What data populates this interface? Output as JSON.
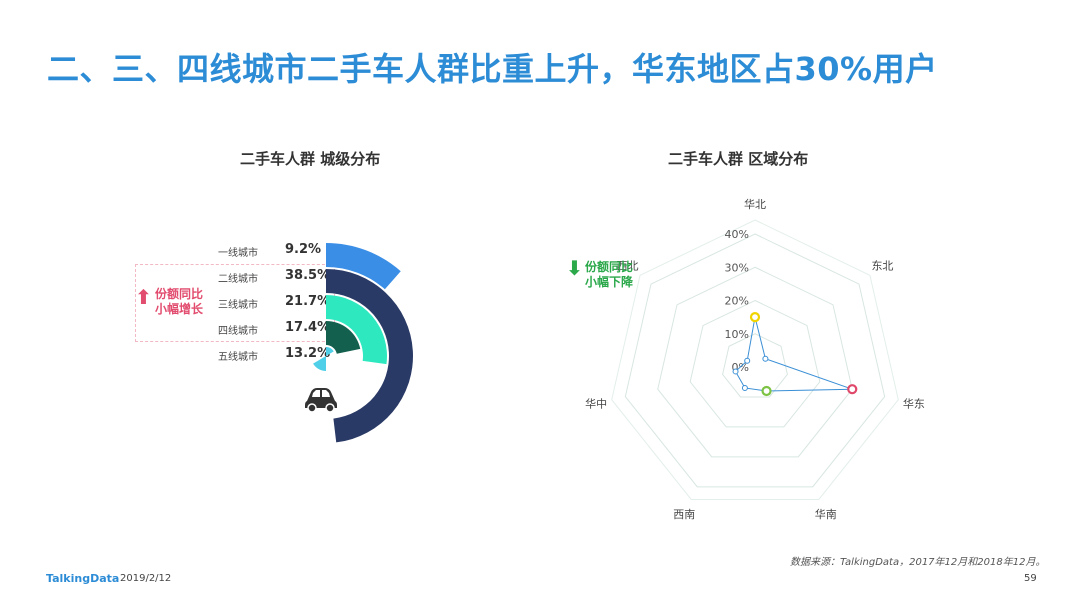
{
  "title": "二、三、四线城市二手车人群比重上升，华东地区占30%用户",
  "left_chart_title": "二手车人群  城级分布",
  "right_chart_title": "二手车人群  区域分布",
  "badge_up": {
    "line1": "份额同比",
    "line2": "小幅增长",
    "color": "#e24c6e"
  },
  "badge_down": {
    "line1": "份额同比",
    "line2": "小幅下降",
    "color": "#2aa84a"
  },
  "source": "数据来源：TalkingData，2017年12月和2018年12月。",
  "footer": {
    "brand": "TalkingData",
    "date": "2019/2/12",
    "page": "59"
  },
  "icons": {
    "car": "car-icon",
    "up": "arrow-up-icon",
    "down": "arrow-down-icon"
  },
  "chart_data": [
    {
      "type": "radial-bar",
      "title": "二手车人群  城级分布",
      "categories": [
        "一线城市",
        "二线城市",
        "三线城市",
        "四线城市",
        "五线城市"
      ],
      "values": [
        9.2,
        38.5,
        21.7,
        17.4,
        13.2
      ],
      "value_labels": [
        "9.2%",
        "38.5%",
        "21.7%",
        "17.4%",
        "13.2%"
      ],
      "colors": [
        "#3a8ee6",
        "#2a3a66",
        "#2ee8c0",
        "#13604e",
        "#4fd0e8"
      ]
    },
    {
      "type": "radar",
      "title": "二手车人群  区域分布",
      "categories": [
        "华北",
        "东北",
        "华东",
        "华南",
        "西南",
        "华中",
        "西北"
      ],
      "values": [
        15,
        4,
        30,
        8,
        7,
        6,
        3
      ],
      "rlim": [
        0,
        40
      ],
      "ticks": [
        0,
        10,
        20,
        30,
        40
      ],
      "tick_labels": [
        "0%",
        "10%",
        "20%",
        "30%",
        "40%"
      ],
      "line_color": "#3a8fd6",
      "highlight_colors": {
        "华北": "#f0d400",
        "华东": "#e0486a",
        "华南": "#7cc243"
      }
    }
  ]
}
